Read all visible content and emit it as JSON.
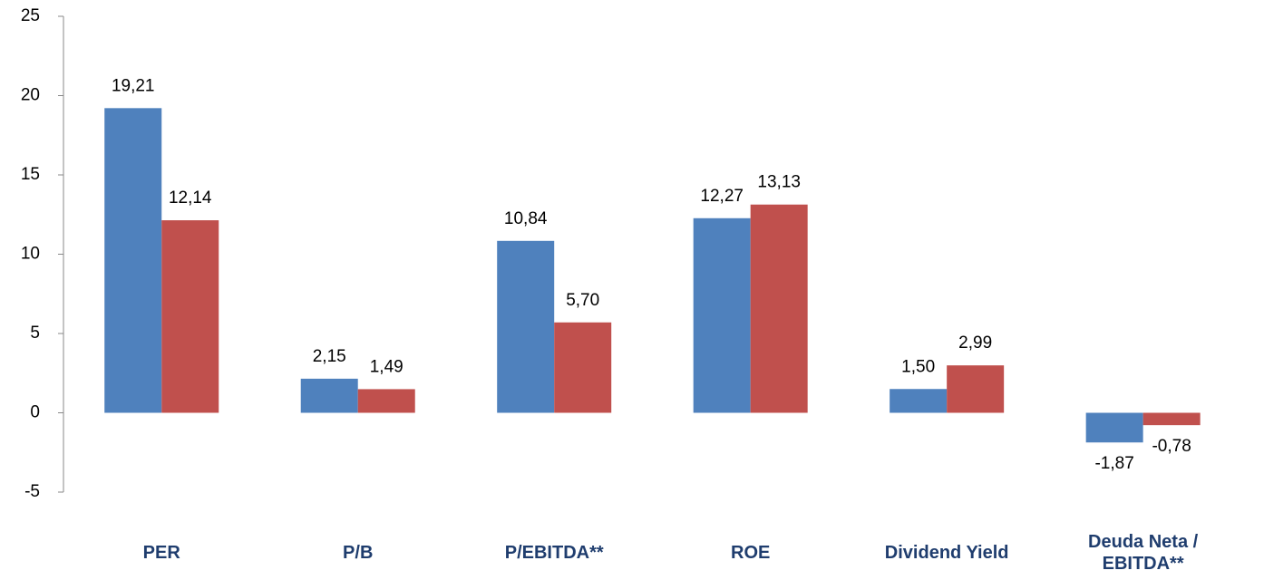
{
  "chart_data": {
    "type": "bar",
    "categories": [
      "PER",
      "P/B",
      "P/EBITDA**",
      "ROE",
      "Dividend Yield",
      "Deuda Neta / EBITDA**"
    ],
    "series": [
      {
        "color": "#4f81bd",
        "values": [
          19.21,
          2.15,
          10.84,
          12.27,
          1.5,
          -1.87
        ],
        "value_labels": [
          "19,21",
          "2,15",
          "10,84",
          "12,27",
          "1,50",
          "-1,87"
        ]
      },
      {
        "color": "#c0504d",
        "values": [
          12.14,
          1.49,
          5.7,
          13.13,
          2.99,
          -0.78
        ],
        "value_labels": [
          "12,14",
          "1,49",
          "5,70",
          "13,13",
          "2,99",
          "-0,78"
        ]
      }
    ],
    "ylim": [
      -5,
      25
    ],
    "yticks": [
      -5,
      0,
      5,
      10,
      15,
      20,
      25
    ],
    "grid": false
  }
}
